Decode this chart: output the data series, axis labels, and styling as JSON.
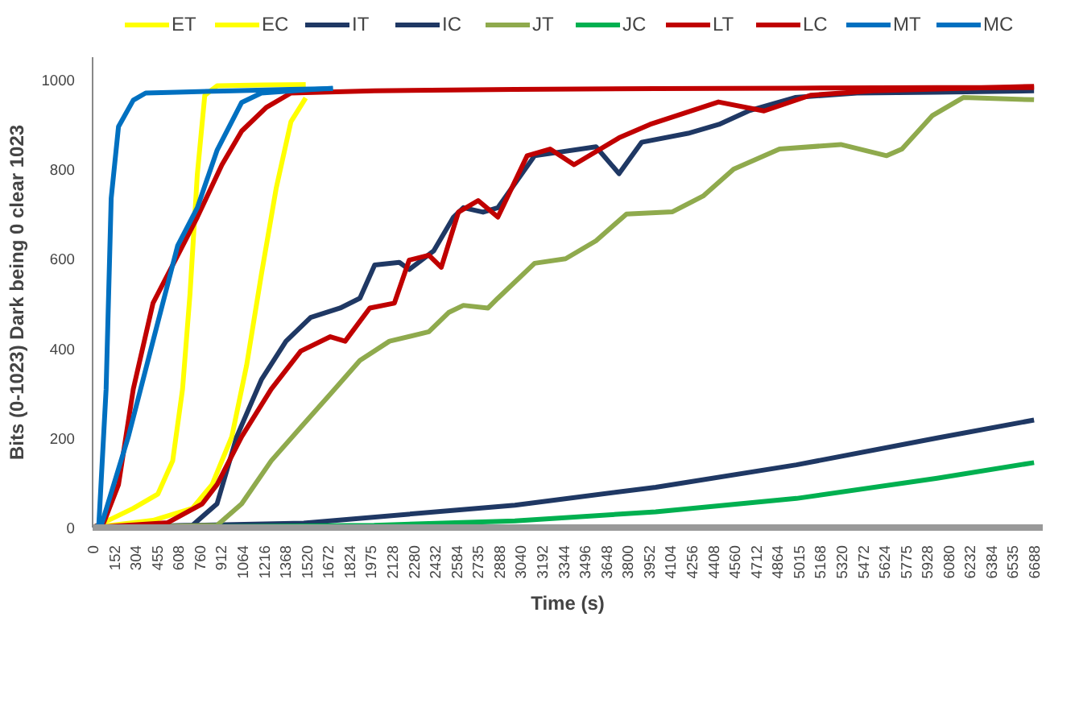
{
  "chart_data": {
    "type": "line",
    "xlabel": "Time (s)",
    "ylabel": "Bits (0-1023) Dark being 0 clear 1023",
    "xlim": [
      0,
      6750
    ],
    "xticks": [
      0,
      152,
      304,
      455,
      608,
      760,
      912,
      1064,
      1216,
      1368,
      1520,
      1672,
      1824,
      1975,
      2128,
      2280,
      2432,
      2584,
      2735,
      2888,
      3040,
      3192,
      3344,
      3496,
      3648,
      3800,
      3952,
      4104,
      4256,
      4408,
      4560,
      4712,
      4864,
      5015,
      5168,
      5320,
      5472,
      5624,
      5775,
      5928,
      6080,
      6232,
      6384,
      6535,
      6688
    ],
    "ylim": [
      0,
      1050
    ],
    "yticks": [
      0,
      200,
      400,
      600,
      800,
      1000
    ],
    "grid": false,
    "legend": "top",
    "marker": "none",
    "line_style": "solid",
    "series": [
      {
        "name": "ET",
        "color": "#ffff00",
        "x": [
          0,
          79,
          289,
          464,
          569,
          639,
          692,
          744,
          797,
          884,
          1200,
          1514
        ],
        "values": [
          0,
          11,
          43,
          75,
          149,
          309,
          522,
          789,
          965,
          986,
          988,
          989
        ]
      },
      {
        "name": "EC",
        "color": "#ffff00",
        "x": [
          0,
          429,
          709,
          849,
          989,
          1094,
          1199,
          1304,
          1409,
          1514
        ],
        "values": [
          0,
          16,
          43,
          96,
          203,
          362,
          565,
          757,
          906,
          959
        ]
      },
      {
        "name": "IT",
        "color": "#1f3864",
        "x": [
          0,
          709,
          884,
          1024,
          1199,
          1374,
          1549,
          1759,
          1899,
          2004,
          2179,
          2249,
          2424,
          2564,
          2634,
          2774,
          2879,
          3140,
          3576,
          3740,
          3900,
          4230,
          4450,
          4660,
          4990,
          5430,
          6000,
          6688
        ],
        "values": [
          0,
          5,
          53,
          203,
          330,
          416,
          469,
          490,
          512,
          586,
          592,
          576,
          618,
          693,
          714,
          704,
          714,
          830,
          850,
          790,
          860,
          880,
          900,
          930,
          960,
          970,
          972,
          975
        ]
      },
      {
        "name": "IC",
        "color": "#1f3864",
        "x": [
          0,
          1500,
          3000,
          4000,
          5000,
          6000,
          6688
        ],
        "values": [
          0,
          10,
          50,
          90,
          140,
          200,
          240
        ]
      },
      {
        "name": "JT",
        "color": "#8faa4d",
        "x": [
          0,
          884,
          1059,
          1269,
          1479,
          1689,
          1899,
          2109,
          2389,
          2529,
          2634,
          2809,
          2879,
          3140,
          3360,
          3576,
          3793,
          4120,
          4337,
          4554,
          4880,
          5315,
          5641,
          5750,
          5967,
          6185,
          6688
        ],
        "values": [
          0,
          5,
          53,
          149,
          224,
          298,
          373,
          416,
          437,
          480,
          496,
          490,
          512,
          590,
          600,
          640,
          700,
          705,
          740,
          800,
          845,
          855,
          830,
          845,
          920,
          960,
          955
        ]
      },
      {
        "name": "JC",
        "color": "#00b050",
        "x": [
          0,
          2000,
          3000,
          4000,
          5000,
          6000,
          6688
        ],
        "values": [
          0,
          5,
          15,
          35,
          65,
          110,
          145
        ]
      },
      {
        "name": "LT",
        "color": "#c00000",
        "x": [
          0,
          79,
          184,
          289,
          429,
          569,
          744,
          919,
          1059,
          1234,
          1409,
          2000,
          3000,
          4000,
          5000,
          6000,
          6688
        ],
        "values": [
          0,
          11,
          96,
          309,
          501,
          586,
          693,
          810,
          885,
          938,
          970,
          975,
          978,
          980,
          981,
          982,
          982
        ]
      },
      {
        "name": "LC",
        "color": "#c00000",
        "x": [
          0,
          534,
          779,
          884,
          1059,
          1269,
          1479,
          1689,
          1794,
          1969,
          2144,
          2249,
          2389,
          2477,
          2599,
          2739,
          2879,
          3087,
          3250,
          3420,
          3740,
          3960,
          4446,
          4770,
          5100,
          5540,
          6688
        ],
        "values": [
          0,
          11,
          53,
          96,
          203,
          309,
          394,
          426,
          416,
          490,
          501,
          597,
          608,
          581,
          704,
          730,
          693,
          830,
          845,
          810,
          870,
          900,
          950,
          930,
          965,
          975,
          985
        ]
      },
      {
        "name": "MT",
        "color": "#0070c0",
        "x": [
          0,
          44,
          96,
          132,
          184,
          289,
          377,
          600,
          1000,
          1400,
          1707
        ],
        "values": [
          0,
          5,
          309,
          735,
          895,
          954,
          970,
          972,
          975,
          978,
          980
        ]
      },
      {
        "name": "MC",
        "color": "#0070c0",
        "x": [
          0,
          62,
          254,
          429,
          604,
          744,
          884,
          1059,
          1199,
          1707
        ],
        "values": [
          0,
          5,
          203,
          416,
          629,
          714,
          842,
          949,
          970,
          981
        ]
      }
    ]
  }
}
